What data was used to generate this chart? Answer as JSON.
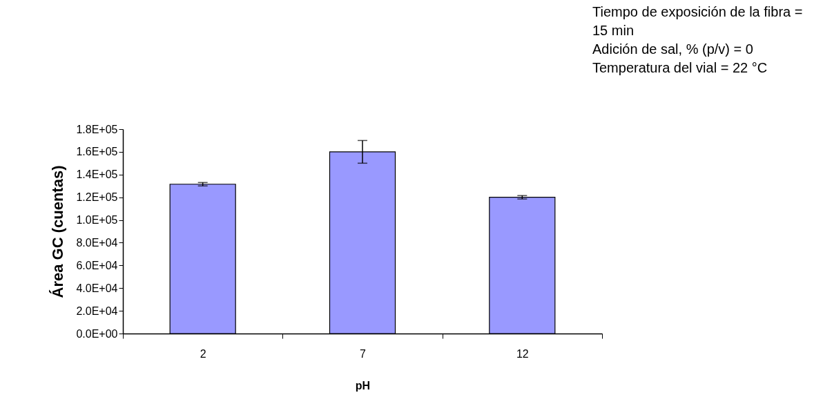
{
  "chart_data": {
    "type": "bar",
    "xlabel": "pH",
    "ylabel": "Área GC (cuentas)",
    "categories": [
      "2",
      "7",
      "12"
    ],
    "values": [
      131500,
      160000,
      120000
    ],
    "errors": [
      1500,
      10000,
      1500
    ],
    "color": "#9999ff",
    "ylim": [
      0,
      180000
    ],
    "yticks": [
      {
        "value": 0,
        "label": "0.0E+00"
      },
      {
        "value": 20000,
        "label": "2.0E+04"
      },
      {
        "value": 40000,
        "label": "4.0E+04"
      },
      {
        "value": 60000,
        "label": "6.0E+04"
      },
      {
        "value": 80000,
        "label": "8.0E+04"
      },
      {
        "value": 100000,
        "label": "1.0E+05"
      },
      {
        "value": 120000,
        "label": "1.2E+05"
      },
      {
        "value": 140000,
        "label": "1.4E+05"
      },
      {
        "value": 160000,
        "label": "1.6E+05"
      },
      {
        "value": 180000,
        "label": "1.8E+05"
      }
    ],
    "grid": false,
    "annotations": [
      "Tiempo de exposición de la fibra =\n15 min",
      "Adición de sal, % (p/v) = 0",
      "Temperatura del vial = 22 °C"
    ]
  }
}
